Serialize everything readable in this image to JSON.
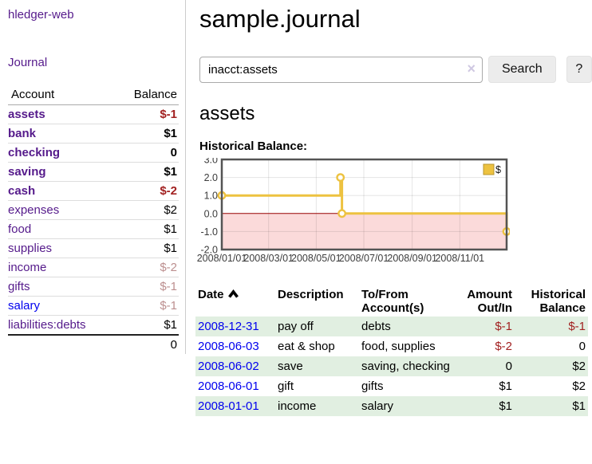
{
  "app": {
    "brand": "hledger-web"
  },
  "nav": {
    "journal": "Journal"
  },
  "colors": {
    "link_purple": "#551A8B",
    "link_blue": "#0000EE",
    "negative_strong": "#A22121",
    "negative_rosy": "#BC8F8F",
    "row_stripe_green": "#E1EFE1",
    "chart_series_gold": "#EDC240",
    "chart_negative_region": "#FBDADA",
    "chart_zero_line": "#990000"
  },
  "sidebar": {
    "header": {
      "account": "Account",
      "balance": "Balance"
    },
    "accounts": [
      {
        "name": "assets",
        "depth": 1,
        "balance": "$-1",
        "bold": true,
        "neg": "strong"
      },
      {
        "name": "bank",
        "depth": 2,
        "balance": "$1",
        "bold": true,
        "neg": "none"
      },
      {
        "name": "checking",
        "depth": 3,
        "balance": "0",
        "bold": true,
        "neg": "none"
      },
      {
        "name": "saving",
        "depth": 3,
        "balance": "$1",
        "bold": true,
        "neg": "none"
      },
      {
        "name": "cash",
        "depth": 2,
        "balance": "$-2",
        "bold": true,
        "neg": "strong"
      },
      {
        "name": "expenses",
        "depth": 1,
        "balance": "$2",
        "bold": false,
        "neg": "none"
      },
      {
        "name": "food",
        "depth": 2,
        "balance": "$1",
        "bold": false,
        "neg": "none"
      },
      {
        "name": "supplies",
        "depth": 2,
        "balance": "$1",
        "bold": false,
        "neg": "none"
      },
      {
        "name": "income",
        "depth": 1,
        "balance": "$-2",
        "bold": false,
        "neg": "rosy"
      },
      {
        "name": "gifts",
        "depth": 2,
        "balance": "$-1",
        "bold": false,
        "neg": "rosy"
      },
      {
        "name": "salary",
        "depth": 2,
        "balance": "$-1",
        "bold": false,
        "neg": "rosy",
        "blue": true
      },
      {
        "name": "liabilities:debts",
        "depth": 1,
        "balance": "$1",
        "bold": false,
        "neg": "none"
      }
    ],
    "total": "0"
  },
  "header": {
    "title": "sample.journal"
  },
  "search": {
    "value": "inacct:assets",
    "clear_icon": "×",
    "button": "Search",
    "help_button": "?"
  },
  "register": {
    "heading": "assets",
    "chart_title": "Historical Balance:",
    "table": {
      "headers": [
        "Date",
        "Description",
        "To/From Account(s)",
        "Amount Out/In",
        "Historical Balance"
      ],
      "sort_indicator": "up-chevron",
      "rows": [
        {
          "date": "2008-12-31",
          "description": "pay off",
          "accounts": "debts",
          "amount": "$-1",
          "balance": "$-1"
        },
        {
          "date": "2008-06-03",
          "description": "eat & shop",
          "accounts": "food, supplies",
          "amount": "$-2",
          "balance": "0"
        },
        {
          "date": "2008-06-02",
          "description": "save",
          "accounts": "saving, checking",
          "amount": "0",
          "balance": "$2"
        },
        {
          "date": "2008-06-01",
          "description": "gift",
          "accounts": "gifts",
          "amount": "$1",
          "balance": "$2"
        },
        {
          "date": "2008-01-01",
          "description": "income",
          "accounts": "salary",
          "amount": "$1",
          "balance": "$1"
        }
      ]
    }
  },
  "chart_data": {
    "type": "line",
    "step": true,
    "title": "Historical Balance:",
    "xlabel": "",
    "ylabel": "",
    "ylim": [
      -2,
      3
    ],
    "x_range": [
      "2008-01-01",
      "2008-12-31"
    ],
    "grid": true,
    "legend_position": "top-right",
    "series": [
      {
        "name": "$",
        "color": "#EDC240",
        "points": [
          [
            "2008-01-01",
            1
          ],
          [
            "2008-06-01",
            2
          ],
          [
            "2008-06-03",
            0
          ],
          [
            "2008-12-31",
            -1
          ]
        ]
      }
    ],
    "y_ticks": [
      {
        "v": 3,
        "label": "3.0"
      },
      {
        "v": 2,
        "label": "2.0"
      },
      {
        "v": 1,
        "label": "1.0"
      },
      {
        "v": 0,
        "label": "0.0"
      },
      {
        "v": -1,
        "label": "-1.0"
      },
      {
        "v": -2,
        "label": "-2.0"
      }
    ],
    "x_ticks": [
      {
        "date": "2008-01-01",
        "label": "2008/01/01"
      },
      {
        "date": "2008-03-01",
        "label": "2008/03/01"
      },
      {
        "date": "2008-05-01",
        "label": "2008/05/01"
      },
      {
        "date": "2008-07-01",
        "label": "2008/07/01"
      },
      {
        "date": "2008-09-01",
        "label": "2008/09/01"
      },
      {
        "date": "2008-11-01",
        "label": "2008/11/01"
      }
    ],
    "negative_region_fill": "#FBDADA",
    "zero_line_color": "#990000",
    "legend": [
      {
        "label": "$",
        "swatch": "#EDC240"
      }
    ]
  }
}
